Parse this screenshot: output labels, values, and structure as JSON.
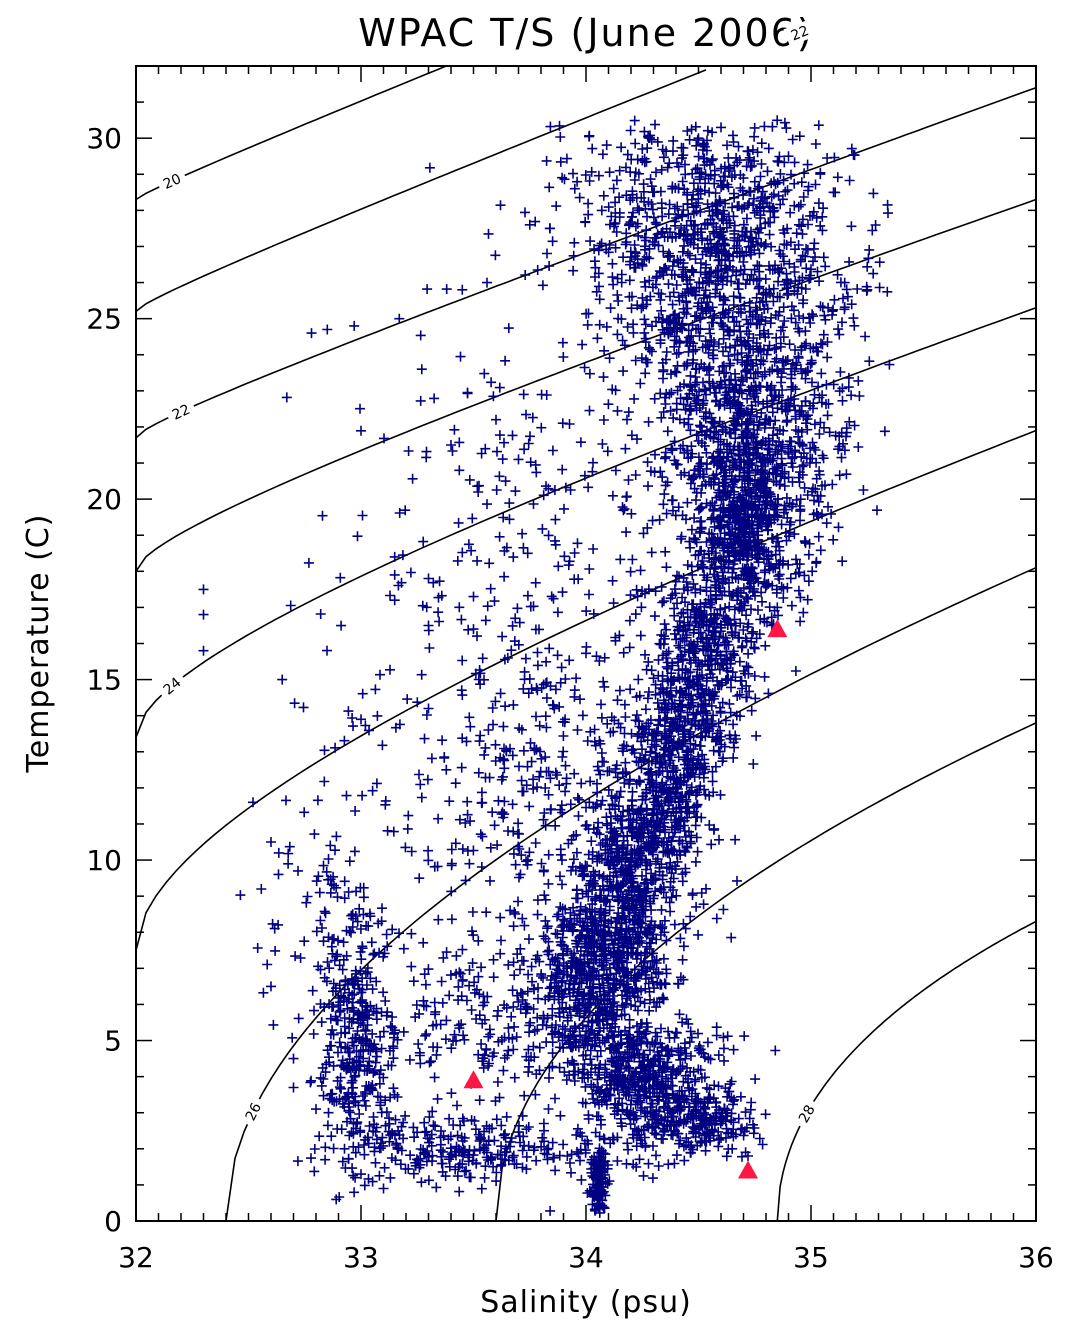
{
  "chart_data": {
    "type": "scatter",
    "title": "WPAC T/S (June 2006)",
    "xlabel": "Salinity (psu)",
    "ylabel": "Temperature (C)",
    "xlim": [
      32,
      36
    ],
    "ylim": [
      0,
      32
    ],
    "xticks": [
      32,
      33,
      34,
      35,
      36
    ],
    "yticks": [
      0,
      5,
      10,
      15,
      20,
      25,
      30
    ],
    "grid": false,
    "series": [
      {
        "marker": "plus",
        "color": "#000080",
        "clusters": [
          {
            "s": 34.55,
            "t": 27.5,
            "sd_s": 0.32,
            "sd_t": 1.9,
            "n": 900
          },
          {
            "s": 34.7,
            "t": 22.5,
            "sd_s": 0.25,
            "sd_t": 2.4,
            "n": 1000
          },
          {
            "s": 34.72,
            "t": 19.5,
            "sd_s": 0.1,
            "sd_t": 1.4,
            "n": 500
          },
          {
            "s": 34.55,
            "t": 16.0,
            "sd_s": 0.1,
            "sd_t": 1.8,
            "n": 500
          },
          {
            "s": 34.38,
            "t": 12.5,
            "sd_s": 0.1,
            "sd_t": 1.8,
            "n": 500
          },
          {
            "s": 34.2,
            "t": 9.5,
            "sd_s": 0.1,
            "sd_t": 1.5,
            "n": 500
          },
          {
            "s": 34.05,
            "t": 6.8,
            "sd_s": 0.13,
            "sd_t": 1.3,
            "n": 600
          },
          {
            "s": 34.25,
            "t": 4.0,
            "sd_s": 0.17,
            "sd_t": 0.9,
            "n": 500
          },
          {
            "s": 34.5,
            "t": 2.7,
            "sd_s": 0.12,
            "sd_t": 0.5,
            "n": 200
          },
          {
            "s": 34.06,
            "t": 1.2,
            "sd_s": 0.02,
            "sd_t": 0.6,
            "n": 120
          },
          {
            "s": 33.5,
            "t": 2.0,
            "sd_s": 0.3,
            "sd_t": 0.45,
            "n": 260
          },
          {
            "s": 32.98,
            "t": 4.5,
            "sd_s": 0.08,
            "sd_t": 1.7,
            "n": 300
          },
          {
            "s": 33.6,
            "t": 5.5,
            "sd_s": 0.35,
            "sd_t": 1.2,
            "n": 240
          },
          {
            "s": 33.85,
            "t": 11.5,
            "sd_s": 0.3,
            "sd_t": 3.0,
            "n": 360
          },
          {
            "s": 33.8,
            "t": 20.0,
            "sd_s": 0.35,
            "sd_t": 3.0,
            "n": 170
          },
          {
            "s": 33.3,
            "t": 13.0,
            "sd_s": 0.35,
            "sd_t": 5.0,
            "n": 130
          },
          {
            "s": 32.9,
            "t": 8.5,
            "sd_s": 0.15,
            "sd_t": 1.8,
            "n": 90
          }
        ],
        "outliers": [
          [
            32.3,
            17.5
          ],
          [
            32.3,
            16.8
          ],
          [
            32.3,
            15.8
          ],
          [
            32.52,
            11.6
          ],
          [
            32.65,
            15.0
          ],
          [
            32.78,
            24.6
          ],
          [
            32.85,
            24.7
          ],
          [
            32.97,
            24.8
          ],
          [
            33.17,
            25.0
          ],
          [
            33.15,
            18.4
          ],
          [
            33.15,
            17.9
          ],
          [
            33.15,
            17.2
          ],
          [
            33.0,
            13.9
          ],
          [
            33.3,
            17.8
          ],
          [
            33.3,
            16.5
          ],
          [
            33.3,
            14.2
          ],
          [
            33.5,
            17.3
          ],
          [
            33.5,
            16.4
          ],
          [
            33.27,
            23.6
          ],
          [
            33.45,
            25.8
          ],
          [
            33.56,
            26.0
          ],
          [
            33.75,
            27.6
          ],
          [
            33.84,
            27.5
          ],
          [
            33.95,
            28.6
          ],
          [
            33.6,
            22.2
          ],
          [
            33.7,
            21.1
          ],
          [
            33.4,
            21.5
          ],
          [
            32.6,
            10.5
          ],
          [
            32.72,
            9.7
          ],
          [
            32.6,
            6.5
          ],
          [
            32.7,
            4.5
          ],
          [
            32.7,
            3.7
          ],
          [
            32.8,
            3.1
          ],
          [
            33.0,
            1.3
          ],
          [
            33.1,
            0.9
          ],
          [
            34.72,
            1.8
          ],
          [
            34.6,
            2.3
          ],
          [
            34.65,
            2.0
          ],
          [
            34.95,
            18.2
          ],
          [
            34.85,
            17.0
          ],
          [
            35.25,
            25.8
          ],
          [
            35.15,
            26.0
          ],
          [
            35.1,
            28.5
          ],
          [
            34.9,
            29.5
          ],
          [
            34.6,
            30.3
          ],
          [
            34.45,
            30.2
          ],
          [
            34.5,
            30.0
          ],
          [
            34.25,
            29.7
          ],
          [
            34.15,
            29.1
          ],
          [
            34.07,
            28.0
          ]
        ]
      }
    ],
    "reference_points": {
      "marker": "triangle",
      "color": "#ff1744",
      "points": [
        [
          34.85,
          16.4
        ],
        [
          33.5,
          3.9
        ],
        [
          34.72,
          1.4
        ]
      ]
    },
    "contours": {
      "levels": [
        "20",
        "22",
        "24",
        "26",
        "28"
      ],
      "note": "sigma-t density isopycnals"
    }
  }
}
